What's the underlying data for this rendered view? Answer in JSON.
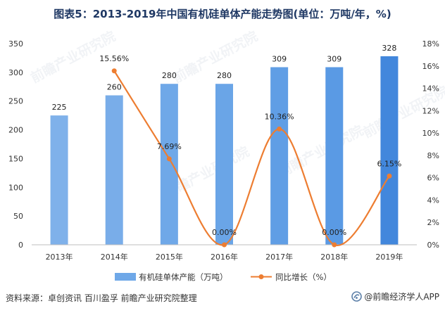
{
  "title": "图表5：2013-2019年中国有机硅单体产能走势图(单位：万吨/年，%)",
  "chart_data": {
    "type": "bar",
    "categories": [
      "2013年",
      "2014年",
      "2015年",
      "2016年",
      "2017年",
      "2018年",
      "2019年"
    ],
    "series": [
      {
        "name": "有机硅单体产能（万吨）",
        "type": "bar",
        "axis": "left",
        "values": [
          225,
          260,
          280,
          280,
          309,
          309,
          328
        ],
        "value_labels": [
          "225",
          "260",
          "280",
          "280",
          "309",
          "309",
          "328"
        ],
        "colors": [
          "#7fb1ea",
          "#79ade9",
          "#6fa8e8",
          "#6aa5e7",
          "#609ee5",
          "#5a9ae4",
          "#4287dc"
        ]
      },
      {
        "name": "同比增长（%）",
        "type": "line",
        "axis": "right",
        "values": [
          null,
          15.56,
          7.69,
          0.0,
          10.36,
          0.0,
          6.15
        ],
        "value_labels": [
          null,
          "15.56%",
          "7.69%",
          "0.00%",
          "10.36%",
          "0.00%",
          "6.15%"
        ],
        "color": "#ed7d31",
        "smooth": true
      }
    ],
    "left_axis": {
      "ylim": [
        0,
        350
      ],
      "ticks": [
        0,
        50,
        100,
        150,
        200,
        250,
        300,
        350
      ],
      "tick_labels": [
        "0",
        "50",
        "100",
        "150",
        "200",
        "250",
        "300",
        "350"
      ]
    },
    "right_axis": {
      "ylim": [
        0,
        18
      ],
      "ticks": [
        0,
        2,
        4,
        6,
        8,
        10,
        12,
        14,
        16,
        18
      ],
      "tick_labels": [
        "0%",
        "2%",
        "4%",
        "6%",
        "8%",
        "10%",
        "12%",
        "14%",
        "16%",
        "18%"
      ]
    },
    "legend_position": "bottom",
    "legend_bar_color": "#6fa8e8",
    "axis_color": "#bfbfbf",
    "grid": false
  },
  "footer": {
    "source": "资料来源：卓创资讯 百川盈孚 前瞻产业研究院整理",
    "brand": "@前瞻经济学人APP",
    "brand_icon": "qianzhan-logo-icon"
  },
  "watermark": "前瞻产业研究院"
}
